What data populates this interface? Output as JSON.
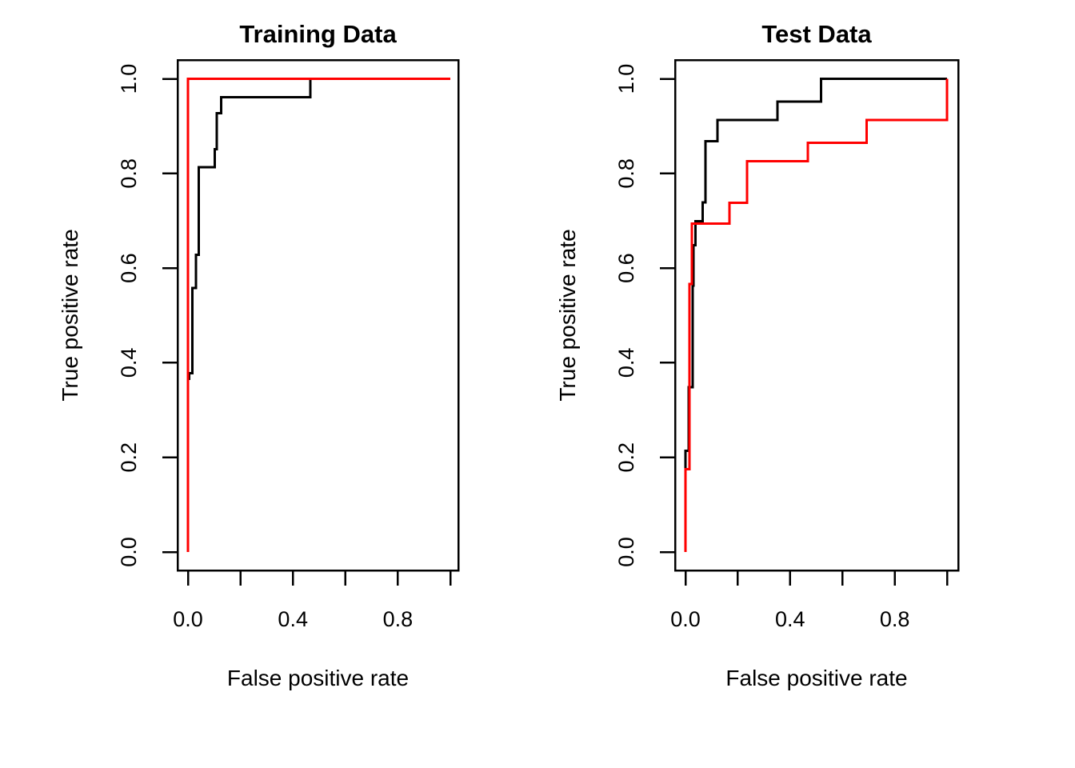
{
  "figure": {
    "background": "#ffffff",
    "curve_colors": {
      "primary": "#000000",
      "secondary": "#ff0000"
    }
  },
  "chart_data": [
    {
      "type": "line",
      "step": true,
      "title": "Training Data",
      "xlabel": "False positive rate",
      "ylabel": "True positive rate",
      "xlim": [
        0,
        1
      ],
      "ylim": [
        0,
        1
      ],
      "grid": false,
      "legend": "none",
      "x_tick_positions": [
        0,
        0.2,
        0.4,
        0.6,
        0.8,
        1.0
      ],
      "x_tick_labels": [
        {
          "pos": 0.0,
          "label": "0.0"
        },
        {
          "pos": 0.4,
          "label": "0.4"
        },
        {
          "pos": 0.8,
          "label": "0.8"
        }
      ],
      "y_tick_positions": [
        0,
        0.2,
        0.4,
        0.6,
        0.8,
        1.0
      ],
      "y_tick_labels": [
        {
          "pos": 0.0,
          "label": "0.0"
        },
        {
          "pos": 0.2,
          "label": "0.2"
        },
        {
          "pos": 0.4,
          "label": "0.4"
        },
        {
          "pos": 0.6,
          "label": "0.6"
        },
        {
          "pos": 0.8,
          "label": "0.8"
        },
        {
          "pos": 1.0,
          "label": "1.0"
        }
      ],
      "series": [
        {
          "name": "black-roc-curve",
          "color": "#000000",
          "points": [
            [
              0,
              0
            ],
            [
              0,
              0.366
            ],
            [
              0.004,
              0.366
            ],
            [
              0.004,
              0.378
            ],
            [
              0.017,
              0.378
            ],
            [
              0.017,
              0.558
            ],
            [
              0.03,
              0.558
            ],
            [
              0.03,
              0.628
            ],
            [
              0.041,
              0.628
            ],
            [
              0.041,
              0.813
            ],
            [
              0.102,
              0.813
            ],
            [
              0.102,
              0.851
            ],
            [
              0.11,
              0.851
            ],
            [
              0.11,
              0.927
            ],
            [
              0.127,
              0.927
            ],
            [
              0.127,
              0.961
            ],
            [
              0.467,
              0.961
            ],
            [
              0.467,
              1
            ],
            [
              1,
              1
            ]
          ]
        },
        {
          "name": "red-roc-curve",
          "color": "#ff0000",
          "points": [
            [
              0,
              0
            ],
            [
              0,
              1
            ],
            [
              1,
              1
            ]
          ]
        }
      ]
    },
    {
      "type": "line",
      "step": true,
      "title": "Test Data",
      "xlabel": "False positive rate",
      "ylabel": "True positive rate",
      "xlim": [
        0,
        1
      ],
      "ylim": [
        0,
        1
      ],
      "grid": false,
      "legend": "none",
      "x_tick_positions": [
        0,
        0.2,
        0.4,
        0.6,
        0.8,
        1.0
      ],
      "x_tick_labels": [
        {
          "pos": 0.0,
          "label": "0.0"
        },
        {
          "pos": 0.4,
          "label": "0.4"
        },
        {
          "pos": 0.8,
          "label": "0.8"
        }
      ],
      "y_tick_positions": [
        0,
        0.2,
        0.4,
        0.6,
        0.8,
        1.0
      ],
      "y_tick_labels": [
        {
          "pos": 0.0,
          "label": "0.0"
        },
        {
          "pos": 0.2,
          "label": "0.2"
        },
        {
          "pos": 0.4,
          "label": "0.4"
        },
        {
          "pos": 0.6,
          "label": "0.6"
        },
        {
          "pos": 0.8,
          "label": "0.8"
        },
        {
          "pos": 1.0,
          "label": "1.0"
        }
      ],
      "series": [
        {
          "name": "black-roc-curve",
          "color": "#000000",
          "points": [
            [
              0,
              0
            ],
            [
              0,
              0.214
            ],
            [
              0.012,
              0.214
            ],
            [
              0.012,
              0.348
            ],
            [
              0.028,
              0.348
            ],
            [
              0.028,
              0.563
            ],
            [
              0.031,
              0.563
            ],
            [
              0.031,
              0.648
            ],
            [
              0.038,
              0.648
            ],
            [
              0.038,
              0.699
            ],
            [
              0.066,
              0.699
            ],
            [
              0.066,
              0.739
            ],
            [
              0.076,
              0.739
            ],
            [
              0.076,
              0.868
            ],
            [
              0.122,
              0.868
            ],
            [
              0.122,
              0.913
            ],
            [
              0.351,
              0.913
            ],
            [
              0.351,
              0.952
            ],
            [
              0.519,
              0.952
            ],
            [
              0.519,
              1
            ],
            [
              1,
              1
            ]
          ]
        },
        {
          "name": "red-roc-curve",
          "color": "#ff0000",
          "points": [
            [
              0,
              0
            ],
            [
              0,
              0.175
            ],
            [
              0.015,
              0.175
            ],
            [
              0.015,
              0.566
            ],
            [
              0.025,
              0.566
            ],
            [
              0.025,
              0.694
            ],
            [
              0.168,
              0.694
            ],
            [
              0.168,
              0.738
            ],
            [
              0.236,
              0.738
            ],
            [
              0.236,
              0.826
            ],
            [
              0.468,
              0.826
            ],
            [
              0.468,
              0.865
            ],
            [
              0.692,
              0.865
            ],
            [
              0.692,
              0.913
            ],
            [
              1,
              0.913
            ],
            [
              1,
              1
            ]
          ]
        }
      ]
    }
  ]
}
